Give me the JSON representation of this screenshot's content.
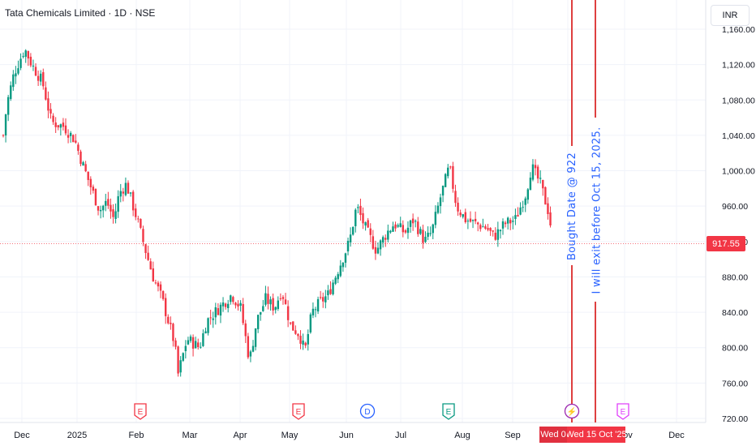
{
  "header": {
    "title": "Tata Chemicals Limited · 1D · NSE"
  },
  "currency_button": "INR",
  "last_price_label": "917.55",
  "chart_data": {
    "type": "candlestick",
    "ylim": [
      720,
      1160
    ],
    "y_ticks": [
      "720.00",
      "760.00",
      "800.00",
      "840.00",
      "880.00",
      "920.00",
      "960.00",
      "1,000.00",
      "1,040.00",
      "1,080.00",
      "1,120.00",
      "1,160.00"
    ],
    "x_labels": [
      "Dec",
      "2025",
      "Feb",
      "Mar",
      "Apr",
      "May",
      "Jun",
      "Jul",
      "Aug",
      "Sep",
      "Oct",
      "Nov",
      "Dec"
    ],
    "last_price": 917.55,
    "close_path": [
      {
        "x": "Nov 27 '24",
        "y": 1040
      },
      {
        "x": "Nov 29 '24",
        "y": 1075
      },
      {
        "x": "Dec 3 '24",
        "y": 1110
      },
      {
        "x": "Dec 9 '24",
        "y": 1138
      },
      {
        "x": "Dec 13 '24",
        "y": 1120
      },
      {
        "x": "Dec 19 '24",
        "y": 1100
      },
      {
        "x": "Dec 24 '24",
        "y": 1055
      },
      {
        "x": "Dec 31 '24",
        "y": 1050
      },
      {
        "x": "Jan 6 '25",
        "y": 1035
      },
      {
        "x": "Jan 10 '25",
        "y": 1010
      },
      {
        "x": "Jan 15 '25",
        "y": 982
      },
      {
        "x": "Jan 20 '25",
        "y": 955
      },
      {
        "x": "Jan 24 '25",
        "y": 965
      },
      {
        "x": "Jan 28 '25",
        "y": 945
      },
      {
        "x": "Jan 31 '25",
        "y": 975
      },
      {
        "x": "Feb 4 '25",
        "y": 985
      },
      {
        "x": "Feb 10 '25",
        "y": 945
      },
      {
        "x": "Feb 14 '25",
        "y": 915
      },
      {
        "x": "Feb 19 '25",
        "y": 880
      },
      {
        "x": "Feb 24 '25",
        "y": 855
      },
      {
        "x": "Mar 3 '25",
        "y": 805
      },
      {
        "x": "Mar 5 '25",
        "y": 770
      },
      {
        "x": "Mar 10 '25",
        "y": 810
      },
      {
        "x": "Mar 17 '25",
        "y": 800
      },
      {
        "x": "Mar 21 '25",
        "y": 830
      },
      {
        "x": "Mar 28 '25",
        "y": 845
      },
      {
        "x": "Apr 4 '25",
        "y": 860
      },
      {
        "x": "Apr 9 '25",
        "y": 845
      },
      {
        "x": "Apr 14 '25",
        "y": 785
      },
      {
        "x": "Apr 18 '25",
        "y": 830
      },
      {
        "x": "Apr 23 '25",
        "y": 855
      },
      {
        "x": "Apr 28 '25",
        "y": 845
      },
      {
        "x": "May 2 '25",
        "y": 865
      },
      {
        "x": "May 7 '25",
        "y": 825
      },
      {
        "x": "May 12 '25",
        "y": 815
      },
      {
        "x": "May 15 '25",
        "y": 795
      },
      {
        "x": "May 19 '25",
        "y": 840
      },
      {
        "x": "May 23 '25",
        "y": 850
      },
      {
        "x": "May 28 '25",
        "y": 860
      },
      {
        "x": "Jun 3 '25",
        "y": 890
      },
      {
        "x": "Jun 9 '25",
        "y": 920
      },
      {
        "x": "Jun 13 '25",
        "y": 960
      },
      {
        "x": "Jun 18 '25",
        "y": 935
      },
      {
        "x": "Jun 24 '25",
        "y": 910
      },
      {
        "x": "Jun 30 '25",
        "y": 930
      },
      {
        "x": "Jul 4 '25",
        "y": 940
      },
      {
        "x": "Jul 10 '25",
        "y": 930
      },
      {
        "x": "Jul 15 '25",
        "y": 945
      },
      {
        "x": "Jul 21 '25",
        "y": 920
      },
      {
        "x": "Jul 25 '25",
        "y": 930
      },
      {
        "x": "Jul 30 '25",
        "y": 970
      },
      {
        "x": "Aug 4 '25",
        "y": 1005
      },
      {
        "x": "Aug 8 '25",
        "y": 960
      },
      {
        "x": "Aug 13 '25",
        "y": 945
      },
      {
        "x": "Aug 19 '25",
        "y": 940
      },
      {
        "x": "Aug 25 '25",
        "y": 935
      },
      {
        "x": "Aug 29 '25",
        "y": 925
      },
      {
        "x": "Sep 4 '25",
        "y": 940
      },
      {
        "x": "Sep 10 '25",
        "y": 945
      },
      {
        "x": "Sep 16 '25",
        "y": 975
      },
      {
        "x": "Sep 19 '25",
        "y": 1005
      },
      {
        "x": "Sep 24 '25",
        "y": 985
      },
      {
        "x": "Sep 29 '25",
        "y": 950
      },
      {
        "x": "Oct 1 '25",
        "y": 917.55
      }
    ],
    "price_line": 917.55,
    "event_markers": [
      {
        "label": "E",
        "color": "#f23645"
      },
      {
        "label": "E",
        "color": "#f23645"
      },
      {
        "label": "D",
        "color": "#2962ff"
      },
      {
        "label": "E",
        "color": "#089981"
      },
      {
        "label": "⚡",
        "color": "#9c27b0"
      },
      {
        "label": "E",
        "color": "#e040fb"
      }
    ]
  },
  "annotations": {
    "bought": "Bought Date @ 922",
    "exit": "I will exit before Oct 15, 2025."
  },
  "date_labels": {
    "first": "Wed 0",
    "second": "Wed 15 Oct '25"
  },
  "colors": {
    "up": "#089981",
    "down": "#f23645",
    "grid": "#f0f3fa",
    "vline": "#d40000",
    "annotation": "#2962ff"
  }
}
